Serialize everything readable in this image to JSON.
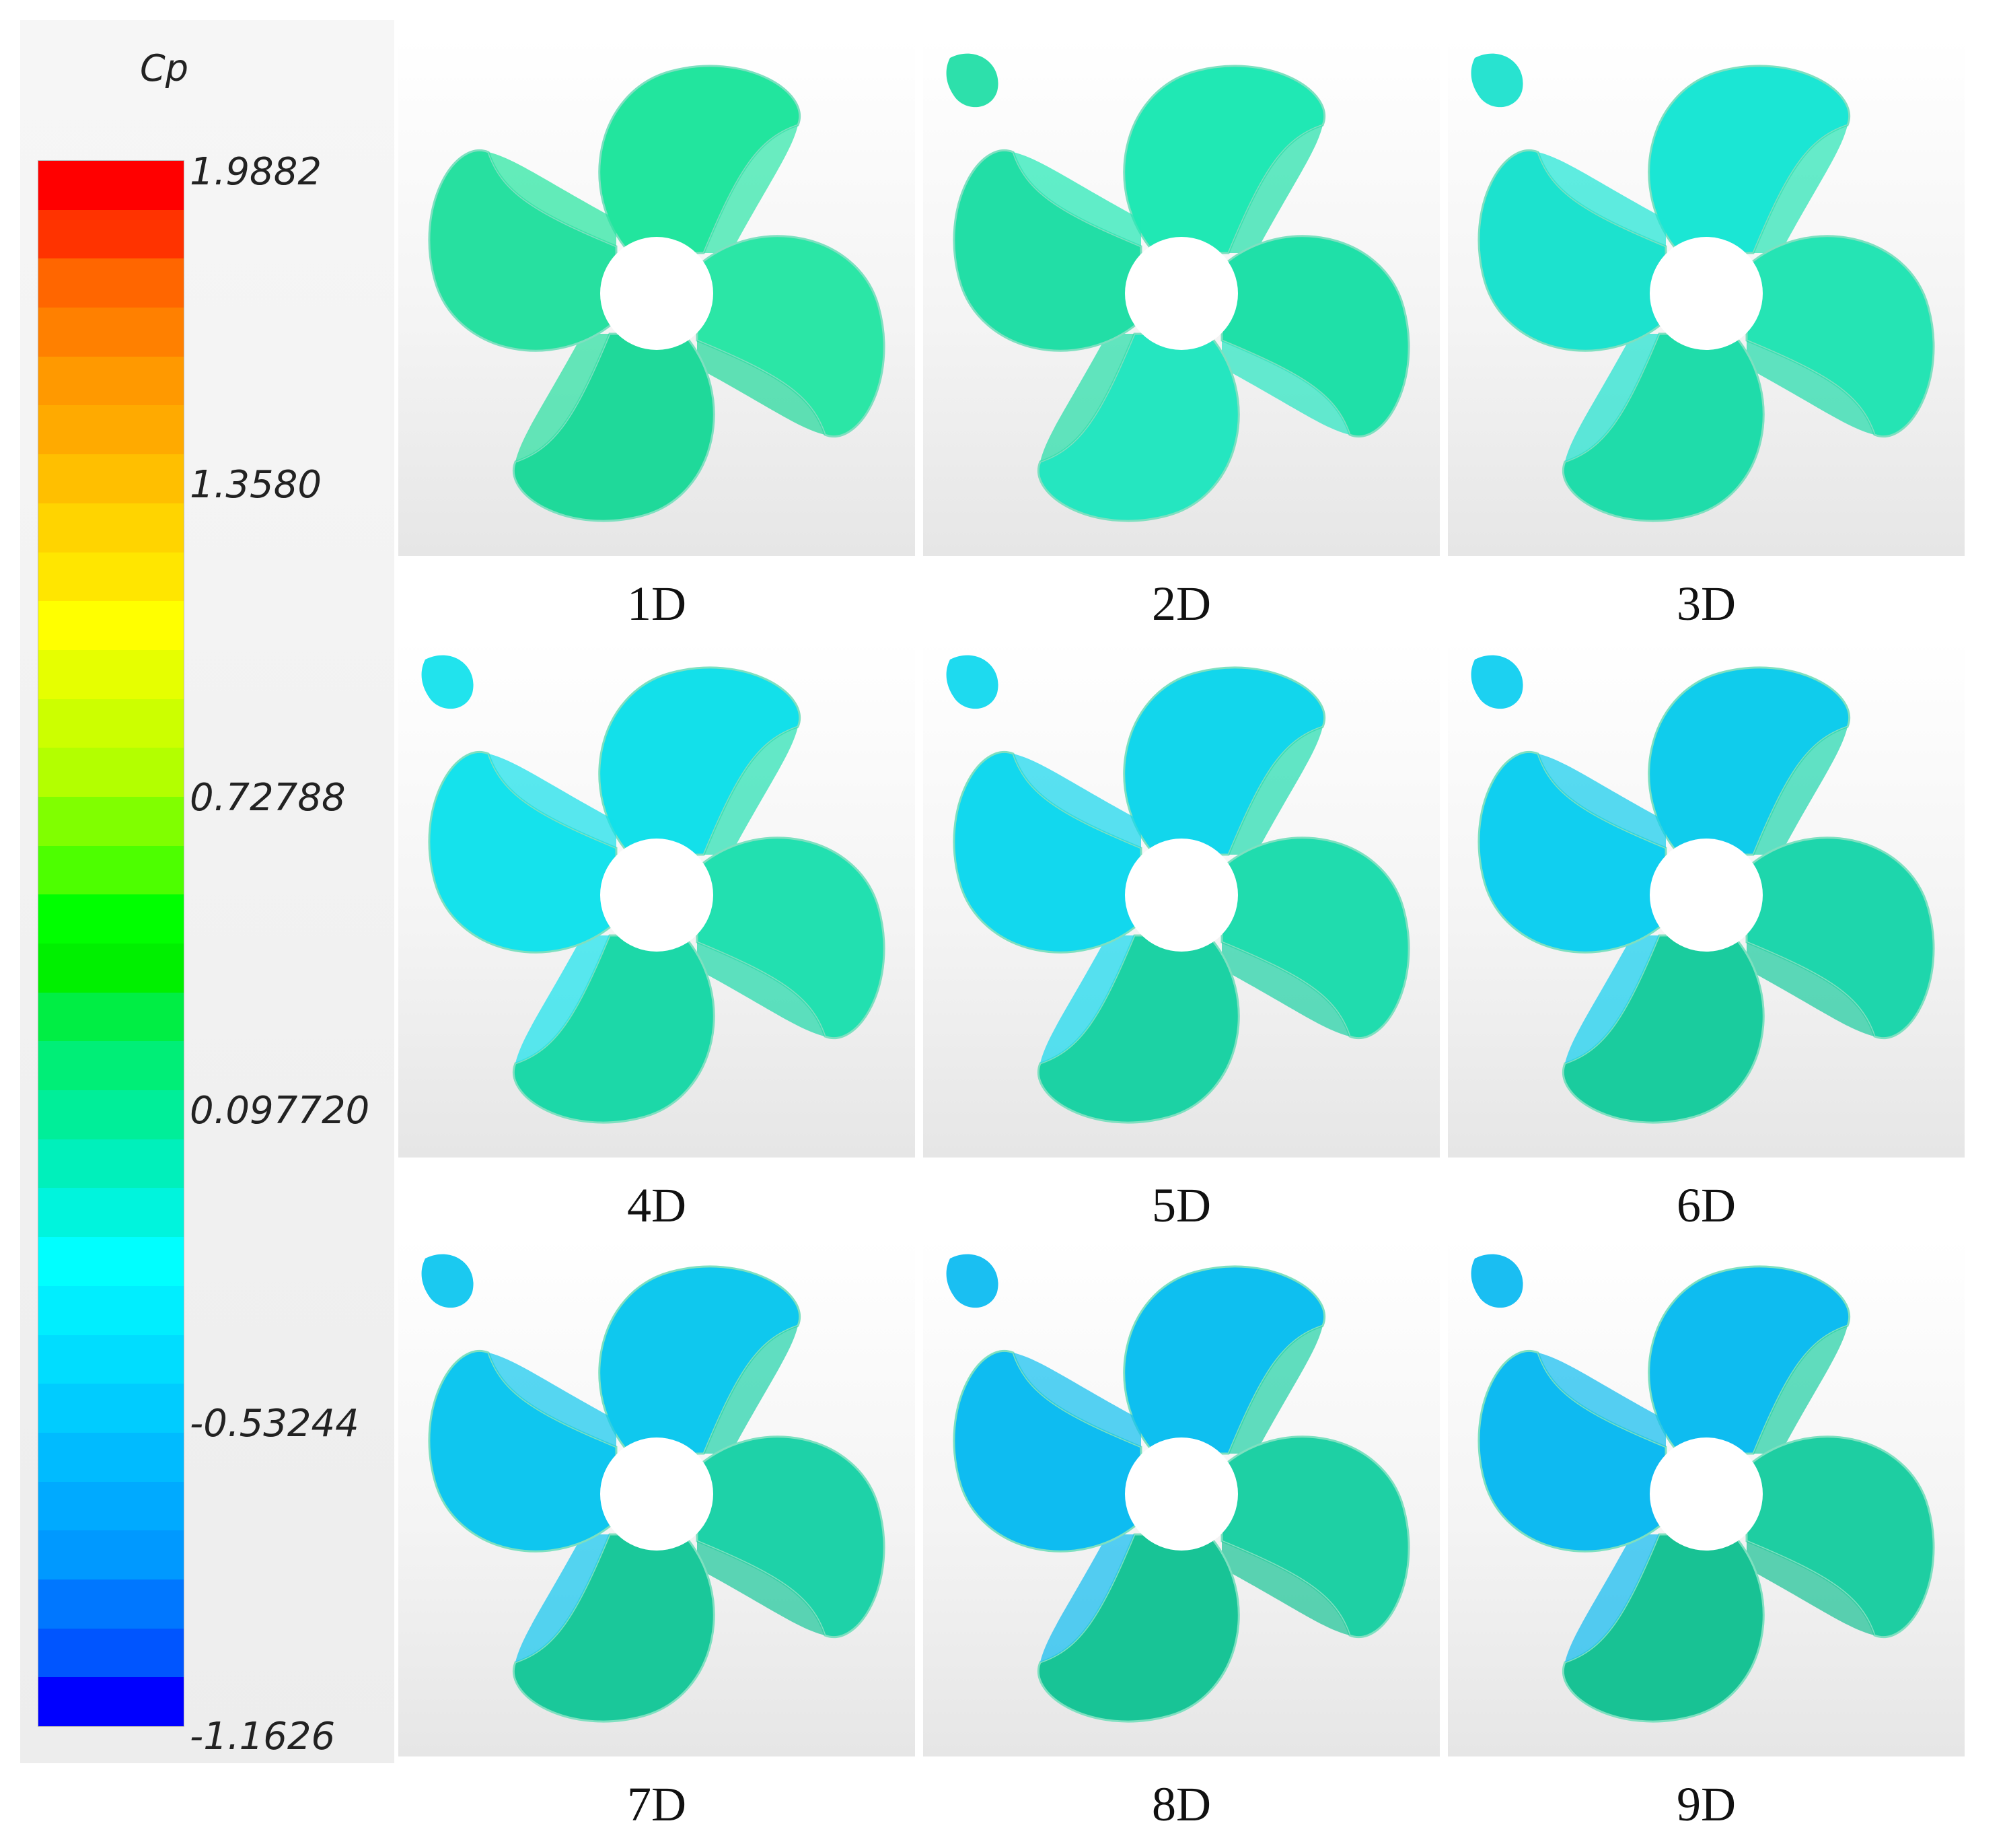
{
  "legend": {
    "title": "Cp",
    "ticks": [
      "1.9882",
      "1.3580",
      "0.72788",
      "0.097720",
      "-0.53244",
      "-1.1626"
    ],
    "colors": [
      "#ff0000",
      "#ff3300",
      "#ff6600",
      "#ff8000",
      "#ff9900",
      "#ffaa00",
      "#ffbf00",
      "#ffd400",
      "#ffe600",
      "#ffff00",
      "#e6ff00",
      "#ccff00",
      "#b3ff00",
      "#80ff00",
      "#4dff00",
      "#00ff00",
      "#00f000",
      "#00ee44",
      "#00ee77",
      "#00ee99",
      "#00f0bb",
      "#00f4dd",
      "#00ffff",
      "#00eeff",
      "#00ddff",
      "#00ccff",
      "#00bbff",
      "#00aaff",
      "#0099ff",
      "#0077ff",
      "#0055ff",
      "#0000ff"
    ]
  },
  "panels": [
    {
      "label": "1D"
    },
    {
      "label": "2D"
    },
    {
      "label": "3D"
    },
    {
      "label": "4D"
    },
    {
      "label": "5D"
    },
    {
      "label": "6D"
    },
    {
      "label": "7D"
    },
    {
      "label": "8D"
    },
    {
      "label": "9D"
    }
  ]
}
